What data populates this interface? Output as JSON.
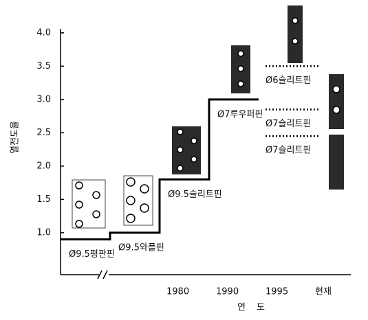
{
  "chart_data": {
    "type": "step",
    "y_label": "열전도율",
    "x_label": "연 도",
    "categories": [
      null,
      null,
      "1980",
      "1990",
      "1995",
      "현재"
    ],
    "values": [
      0.9,
      1.0,
      1.8,
      3.0,
      null,
      null
    ],
    "step_labels": [
      "Ø9.5평판핀",
      "Ø9.5와플핀",
      "Ø9.5슬리트핀",
      "Ø7루우퍼핀",
      null,
      null
    ],
    "color": "#000000",
    "current": [
      {
        "label": "Ø6슬리트핀",
        "value": 3.5
      },
      {
        "label": "Ø7슬리트핀",
        "value": 2.85
      },
      {
        "label": "Ø7슬리트핀",
        "value": 2.45
      }
    ],
    "ylim": [
      0.37,
      4.06
    ],
    "yticks": [
      {
        "value": 1.0,
        "label": "1.0"
      },
      1.5,
      {
        "value": 2.0,
        "label": "2.0"
      },
      2.5,
      {
        "value": 3.0,
        "label": "3.0"
      },
      3.5,
      {
        "value": 4.0,
        "label": "4.0"
      }
    ]
  }
}
